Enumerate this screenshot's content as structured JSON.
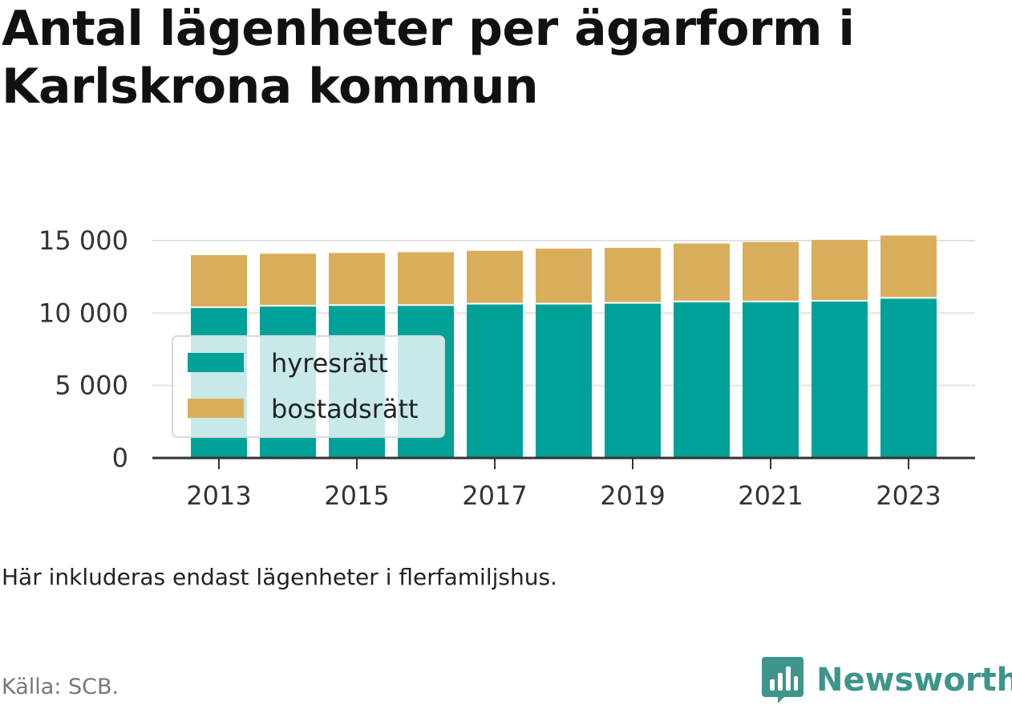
{
  "title": "Antal lägenheter per ägarform i Karlskrona kommun",
  "note": "Här inkluderas endast lägenheter i flerfamiljshus.",
  "source": "Källa: SCB.",
  "brand": {
    "name": "Newsworthy",
    "logo_icon": "newsworthy-bar-chart-logo",
    "color": "#3d958c"
  },
  "chart_data": {
    "type": "bar",
    "stacked": true,
    "categories": [
      "2013",
      "2014",
      "2015",
      "2016",
      "2017",
      "2018",
      "2019",
      "2020",
      "2021",
      "2022",
      "2023"
    ],
    "x_tick_labels": [
      "2013",
      "2015",
      "2017",
      "2019",
      "2021",
      "2023"
    ],
    "y_tick_labels": [
      "0",
      "5 000",
      "10 000",
      "15 000"
    ],
    "y_ticks": [
      0,
      5000,
      10000,
      15000
    ],
    "ylim": [
      0,
      15000
    ],
    "grid": true,
    "legend_position": "bottom-left",
    "series": [
      {
        "name": "hyresrätt",
        "color": "#00a199",
        "values": [
          10400,
          10500,
          10550,
          10550,
          10650,
          10650,
          10700,
          10800,
          10800,
          10850,
          11050
        ]
      },
      {
        "name": "bostadsrätt",
        "color": "#d9ae5b",
        "values": [
          3600,
          3600,
          3600,
          3650,
          3650,
          3800,
          3800,
          4000,
          4100,
          4200,
          4300
        ]
      }
    ]
  }
}
